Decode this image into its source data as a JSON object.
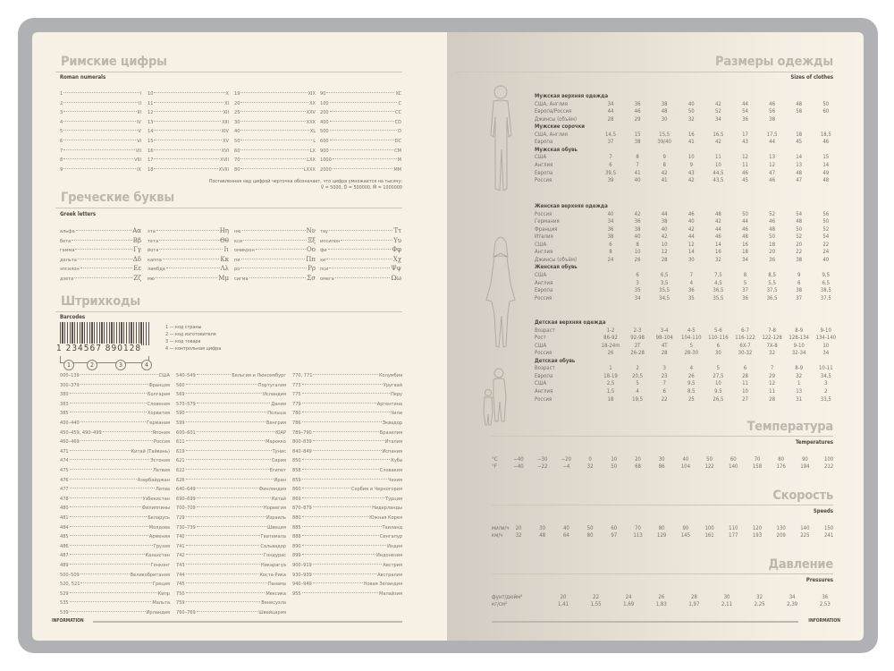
{
  "footer_label": "INFORMATION",
  "roman": {
    "title": "Римские цифры",
    "subtitle": "Roman numerals",
    "columns": [
      [
        [
          "1",
          "I"
        ],
        [
          "2",
          "II"
        ],
        [
          "3",
          "III"
        ],
        [
          "4",
          "IV"
        ],
        [
          "5",
          "V"
        ],
        [
          "6",
          "VI"
        ],
        [
          "7",
          "VII"
        ],
        [
          "8",
          "VIII"
        ],
        [
          "9",
          "IX"
        ]
      ],
      [
        [
          "10",
          "X"
        ],
        [
          "11",
          "XI"
        ],
        [
          "12",
          "XII"
        ],
        [
          "13",
          "XIII"
        ],
        [
          "14",
          "XIV"
        ],
        [
          "15",
          "XV"
        ],
        [
          "16",
          "XVI"
        ],
        [
          "17",
          "XVII"
        ],
        [
          "18",
          "XVIII"
        ]
      ],
      [
        [
          "19",
          "XIX"
        ],
        [
          "20",
          "XX"
        ],
        [
          "25",
          "XXV"
        ],
        [
          "30",
          "XXX"
        ],
        [
          "40",
          "XL"
        ],
        [
          "50",
          "L"
        ],
        [
          "60",
          "LX"
        ],
        [
          "70",
          "LXX"
        ],
        [
          "80",
          "LXXX"
        ]
      ],
      [
        [
          "90",
          "XC"
        ],
        [
          "100",
          "C"
        ],
        [
          "200",
          "CC"
        ],
        [
          "400",
          "CD"
        ],
        [
          "500",
          "D"
        ],
        [
          "600",
          "DC"
        ],
        [
          "900",
          "CM"
        ],
        [
          "1000",
          "M"
        ],
        [
          "2000",
          "MM"
        ]
      ]
    ],
    "note_line1": "Поставленная над цифрой черточка обозначает, что цифра умножается на тысячу:",
    "note_line2": "V̄ = 5000, D̄ = 500000, M̄ = 1000000"
  },
  "greek": {
    "title": "Греческие буквы",
    "subtitle": "Greek letters",
    "columns": [
      [
        [
          "альфа",
          "Αα"
        ],
        [
          "бета",
          "Ββ"
        ],
        [
          "гамма",
          "Γγ"
        ],
        [
          "дельта",
          "Δδ"
        ],
        [
          "эпсилон",
          "Εε"
        ],
        [
          "дзета",
          "Ζζ"
        ]
      ],
      [
        [
          "эта",
          "Ηη"
        ],
        [
          "тета",
          "Θθ"
        ],
        [
          "йота",
          "Ιι"
        ],
        [
          "каппа",
          "Κκ"
        ],
        [
          "ламбда",
          "Λλ"
        ],
        [
          "мю",
          "Μμ"
        ]
      ],
      [
        [
          "ню",
          "Νν"
        ],
        [
          "кси",
          "Ξξ"
        ],
        [
          "омикрон",
          "Οο"
        ],
        [
          "пи",
          "Ππ"
        ],
        [
          "ро",
          "Ρρ"
        ],
        [
          "сигма",
          "Σσ"
        ]
      ],
      [
        [
          "тау",
          "Ττ"
        ],
        [
          "ипсилон",
          "Υυ"
        ],
        [
          "фи",
          "Φφ"
        ],
        [
          "хи",
          "Χχ"
        ],
        [
          "пси",
          "Ψψ"
        ],
        [
          "омега",
          "Ωω"
        ]
      ]
    ]
  },
  "barcodes": {
    "title": "Штрихкоды",
    "subtitle": "Barcodes",
    "sample_digits": [
      "1",
      "234567",
      "890128"
    ],
    "legend": [
      "1 — код страны",
      "2 — код изготовителя",
      "3 — код товара",
      "4 — контрольная цифра"
    ],
    "markers": [
      "1",
      "2",
      "3",
      "4"
    ],
    "columns": [
      [
        [
          "000–139",
          "США"
        ],
        [
          "300–379",
          "Франция"
        ],
        [
          "380",
          "Болгария"
        ],
        [
          "383",
          "Словения"
        ],
        [
          "385",
          "Хорватия"
        ],
        [
          "400–440",
          "Германия"
        ],
        [
          "450–459, 490–499",
          "Япония"
        ],
        [
          "460–469",
          "Россия"
        ],
        [
          "471",
          "Китай (Тайвань)"
        ],
        [
          "474",
          "Эстония"
        ],
        [
          "475",
          "Латвия"
        ],
        [
          "476",
          "Азербайджан"
        ],
        [
          "477",
          "Литва"
        ],
        [
          "478",
          "Узбекистан"
        ],
        [
          "480",
          "Филиппины"
        ],
        [
          "481",
          "Беларусь"
        ],
        [
          "484",
          "Молдова"
        ],
        [
          "485",
          "Армения"
        ],
        [
          "486",
          "Грузия"
        ],
        [
          "487",
          "Казахстан"
        ],
        [
          "489",
          "Гонконг"
        ],
        [
          "500–509",
          "Великобритания"
        ],
        [
          "520, 521",
          "Греция"
        ],
        [
          "529",
          "Кипр"
        ],
        [
          "535",
          "Мальта"
        ],
        [
          "539",
          "Ирландия"
        ]
      ],
      [
        [
          "540–549",
          "Бельгия и Люксембург"
        ],
        [
          "560",
          "Португалия"
        ],
        [
          "569",
          "Исландия"
        ],
        [
          "570–579",
          "Дания"
        ],
        [
          "590",
          "Польша"
        ],
        [
          "599",
          "Венгрия"
        ],
        [
          "600–601",
          "ЮАР"
        ],
        [
          "611",
          "Марокко"
        ],
        [
          "619",
          "Тунис"
        ],
        [
          "621",
          "Сирия"
        ],
        [
          "622",
          "Египет"
        ],
        [
          "626",
          "Иран"
        ],
        [
          "640–649",
          "Финляндия"
        ],
        [
          "690–699",
          "Китай"
        ],
        [
          "700–709",
          "Норвегия"
        ],
        [
          "729",
          "Израиль"
        ],
        [
          "730–739",
          "Швеция"
        ],
        [
          "740",
          "Гватемала"
        ],
        [
          "741",
          "Сальвадор"
        ],
        [
          "742",
          "Гондурас"
        ],
        [
          "743",
          "Никарагуа"
        ],
        [
          "744",
          "Коста-Рика"
        ],
        [
          "745",
          "Панама"
        ],
        [
          "750",
          "Мексика"
        ],
        [
          "759",
          "Венесуэла"
        ],
        [
          "760–769",
          "Швейцария"
        ]
      ],
      [
        [
          "770, 771",
          "Колумбия"
        ],
        [
          "773",
          "Уругвай"
        ],
        [
          "775",
          "Перу"
        ],
        [
          "779",
          "Аргентина"
        ],
        [
          "780",
          "Чили"
        ],
        [
          "786",
          "Эквадор"
        ],
        [
          "789–790",
          "Бразилия"
        ],
        [
          "800–839",
          "Италия"
        ],
        [
          "840–849",
          "Испания"
        ],
        [
          "850",
          "Куба"
        ],
        [
          "858",
          "Словакия"
        ],
        [
          "859",
          "Чехия"
        ],
        [
          "860",
          "Сербия и Черногория"
        ],
        [
          "869",
          "Турция"
        ],
        [
          "870–879",
          "Нидерланды"
        ],
        [
          "880",
          "Южная Корея"
        ],
        [
          "885",
          "Таиланд"
        ],
        [
          "888",
          "Сингапур"
        ],
        [
          "890",
          "Индия"
        ],
        [
          "899",
          "Индонезия"
        ],
        [
          "900–919",
          "Австрия"
        ],
        [
          "930–939",
          "Австралия"
        ],
        [
          "940–949",
          "Новая Зеландия"
        ],
        [
          "955",
          "Малайзия"
        ]
      ]
    ]
  },
  "sizes": {
    "title": "Размеры одежды",
    "subtitle": "Sizes of clothes",
    "blocks": [
      [
        {
          "group": "Мужская верхняя одежда",
          "rows": [
            [
              "США, Англия",
              [
                "34",
                "36",
                "38",
                "40",
                "42",
                "44",
                "46",
                "48",
                "50"
              ]
            ],
            [
              "Европа/Россия",
              [
                "44",
                "46",
                "48",
                "50",
                "52",
                "54",
                "56",
                "58",
                "60"
              ]
            ],
            [
              "Джинсы (объём)",
              [
                "28",
                "29",
                "30",
                "32",
                "34",
                "36",
                "38",
                "",
                ""
              ]
            ]
          ]
        },
        {
          "group": "Мужские сорочки",
          "rows": [
            [
              "США, Англия",
              [
                "14,5",
                "15",
                "15,5",
                "16",
                "16,5",
                "17",
                "17,5",
                "18",
                "18,5"
              ]
            ],
            [
              "Европа",
              [
                "37",
                "38",
                "39/40",
                "41",
                "42",
                "43",
                "44",
                "45",
                "46"
              ]
            ]
          ]
        },
        {
          "group": "Мужская обувь",
          "rows": [
            [
              "США",
              [
                "7",
                "8",
                "9",
                "10",
                "11",
                "12",
                "13",
                "14",
                "15"
              ]
            ],
            [
              "Англия",
              [
                "6",
                "7",
                "8",
                "9",
                "10",
                "11",
                "12",
                "13",
                "14"
              ]
            ],
            [
              "Европа",
              [
                "39,5",
                "41",
                "42",
                "43",
                "44,5",
                "46",
                "47",
                "48",
                "49"
              ]
            ],
            [
              "Россия",
              [
                "39",
                "40",
                "41",
                "42",
                "43,5",
                "45",
                "46",
                "47",
                "48"
              ]
            ]
          ]
        }
      ],
      [
        {
          "group": "Женская верхняя одежда",
          "rows": [
            [
              "Россия",
              [
                "40",
                "42",
                "44",
                "46",
                "48",
                "50",
                "52",
                "54",
                "56"
              ]
            ],
            [
              "Германия",
              [
                "34",
                "36",
                "38",
                "40",
                "42",
                "44",
                "46",
                "48",
                "50"
              ]
            ],
            [
              "Франция",
              [
                "36",
                "38",
                "40",
                "42",
                "44",
                "46",
                "48",
                "50",
                "52"
              ]
            ],
            [
              "Италия",
              [
                "38",
                "40",
                "42",
                "44",
                "46",
                "48",
                "50",
                "52",
                "54"
              ]
            ],
            [
              "США",
              [
                "6",
                "8",
                "10",
                "12",
                "14",
                "16",
                "18",
                "20",
                "22"
              ]
            ],
            [
              "Англия",
              [
                "8",
                "10",
                "12",
                "14",
                "16",
                "18",
                "20",
                "22",
                "24"
              ]
            ],
            [
              "Джинсы (объём)",
              [
                "24",
                "26",
                "28",
                "30",
                "32",
                "34",
                "36",
                "38",
                "40"
              ]
            ]
          ]
        },
        {
          "group": "Женская обувь",
          "rows": [
            [
              "США",
              [
                "",
                "6",
                "6,5",
                "7",
                "7,5",
                "8",
                "8,5",
                "9",
                "9,5"
              ]
            ],
            [
              "Англия",
              [
                "",
                "3",
                "3,5",
                "4",
                "4,5",
                "5",
                "5,5",
                "6",
                "6,5"
              ]
            ],
            [
              "Европа",
              [
                "",
                "35",
                "35,5",
                "36",
                "36,5",
                "37",
                "37,5",
                "38",
                "38,5"
              ]
            ],
            [
              "Россия",
              [
                "",
                "34",
                "34,5",
                "35",
                "35,5",
                "36",
                "36,5",
                "37",
                "37,5"
              ]
            ]
          ]
        }
      ],
      [
        {
          "group": "Детская верхняя одежда",
          "rows": [
            [
              "Возраст",
              [
                "1-2",
                "2-3",
                "3-4",
                "4-5",
                "5-6",
                "6-7",
                "7-8",
                "8-9",
                "9-10"
              ]
            ],
            [
              "Рост",
              [
                "86-92",
                "92-98",
                "98-104",
                "104-110",
                "110-116",
                "116-122",
                "122-128",
                "128-134",
                "134-140"
              ]
            ],
            [
              "США",
              [
                "18-24m",
                "2T",
                "4T",
                "5",
                "6",
                "6X-7",
                "7X-8",
                "9-10",
                "10"
              ]
            ],
            [
              "Россия",
              [
                "26",
                "26-28",
                "28",
                "28-30",
                "30",
                "30-32",
                "32",
                "32-34",
                "34"
              ]
            ]
          ]
        },
        {
          "group": "Детская обувь",
          "rows": [
            [
              "Возраст",
              [
                "1",
                "2",
                "3",
                "4",
                "5",
                "6",
                "7",
                "8-9",
                "10-11"
              ]
            ],
            [
              "Европа",
              [
                "18-19",
                "20,5",
                "23",
                "26",
                "27,5",
                "28",
                "29",
                "32",
                "34,5"
              ]
            ],
            [
              "США",
              [
                "2,5",
                "5",
                "7",
                "9,5",
                "10",
                "11",
                "12",
                "1",
                "3"
              ]
            ],
            [
              "Англия",
              [
                "1,5",
                "4",
                "6",
                "8.5",
                "9.5",
                "10",
                "11",
                "13",
                "2"
              ]
            ],
            [
              "Россия",
              [
                "18",
                "19,5",
                "22",
                "25",
                "26,5",
                "27",
                "28",
                "31",
                "33,5"
              ]
            ]
          ]
        }
      ]
    ]
  },
  "temperature": {
    "title": "Температура",
    "subtitle": "Temperatures",
    "rows": [
      [
        "°C",
        [
          "−40",
          "−30",
          "−20",
          "0",
          "10",
          "20",
          "30",
          "40",
          "50",
          "60",
          "70",
          "80",
          "90",
          "100"
        ]
      ],
      [
        "°F",
        [
          "−40",
          "−22",
          "−4",
          "32",
          "50",
          "68",
          "86",
          "104",
          "122",
          "140",
          "158",
          "176",
          "194",
          "212"
        ]
      ]
    ]
  },
  "speed": {
    "title": "Скорость",
    "subtitle": "Speeds",
    "rows": [
      [
        "мили/ч",
        [
          "20",
          "30",
          "40",
          "50",
          "60",
          "70",
          "80",
          "90",
          "100",
          "110",
          "120",
          "130",
          "140",
          "150"
        ]
      ],
      [
        "км/ч",
        [
          "32",
          "48",
          "64",
          "80",
          "97",
          "113",
          "129",
          "145",
          "161",
          "177",
          "193",
          "209",
          "225",
          "241"
        ]
      ]
    ]
  },
  "pressure": {
    "title": "Давление",
    "subtitle": "Pressures",
    "rows": [
      [
        "фунт/дюйм²",
        [
          "20",
          "22",
          "24",
          "26",
          "28",
          "30",
          "32",
          "34",
          "36"
        ]
      ],
      [
        "кг/см²",
        [
          "1,41",
          "1,55",
          "1,69",
          "1,83",
          "1,97",
          "2,11",
          "2,25",
          "2,39",
          "2,53"
        ]
      ]
    ]
  }
}
